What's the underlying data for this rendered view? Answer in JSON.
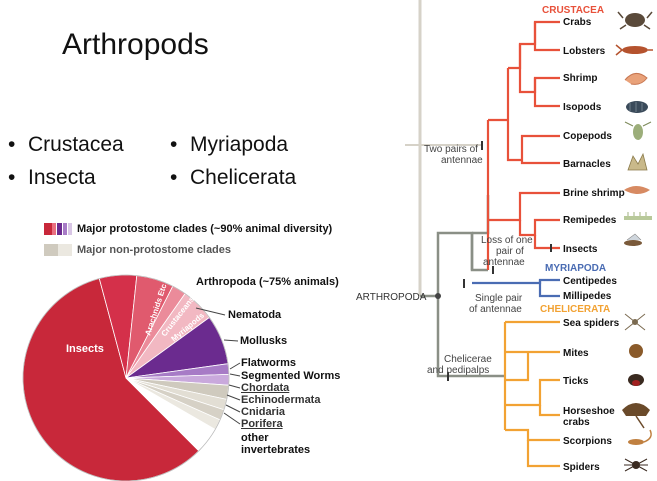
{
  "slide_title": "Arthropods",
  "bullets": [
    "Crustacea",
    "Insecta",
    "Myriapoda",
    "Chelicerata"
  ],
  "legend": {
    "major_protostome": "Major protostome clades (~90% animal diversity)",
    "major_nonprotostome": "Major non-protostome clades"
  },
  "pie": {
    "inner_labels": {
      "insects": "Insects",
      "arachnids": "Arachnids Etc",
      "crustaceans": "Crustaceans",
      "myriapods": "Myriapods"
    },
    "outer_labels": {
      "arthropoda": "Arthropoda (~75% animals)",
      "nematoda": "Nematoda",
      "mollusks": "Mollusks",
      "flatworms": "Flatworms",
      "segmented": "Segmented Worms",
      "chordata": "Chordata",
      "echinodermata": "Echinodermata",
      "cnidaria": "Cnidaria",
      "porifera": "Porifera",
      "other1": "other",
      "other2": "invertebrates"
    }
  },
  "tree": {
    "clades": {
      "crustacea": "CRUSTACEA",
      "myriapoda": "MYRIAPODA",
      "chelicerata": "CHELICERATA",
      "arthropoda": "ARTHROPODA"
    },
    "nodes": {
      "two_pairs_1": "Two pairs of",
      "two_pairs_2": "antennae",
      "loss_1": "Loss of one",
      "loss_2": "pair of",
      "loss_3": "antennae",
      "single_1": "Single pair",
      "single_2": "of antennae",
      "chel_1": "Chelicerae",
      "chel_2": "and pedipalps"
    },
    "taxa": {
      "crabs": "Crabs",
      "lobsters": "Lobsters",
      "shrimp": "Shrimp",
      "isopods": "Isopods",
      "copepods": "Copepods",
      "barnacles": "Barnacles",
      "brine_shrimp": "Brine shrimp",
      "remipedes": "Remipedes",
      "insects": "Insects",
      "centipedes": "Centipedes",
      "millipedes": "Millipedes",
      "sea_spiders": "Sea spiders",
      "mites": "Mites",
      "ticks": "Ticks",
      "horseshoe_1": "Horseshoe",
      "horseshoe_2": "crabs",
      "scorpions": "Scorpions",
      "spiders": "Spiders"
    }
  },
  "colors": {
    "crustacea": "#e8513a",
    "myriapoda": "#4a6cb3",
    "chelicerata": "#f2a233",
    "trunk": "#8a8f86",
    "outgroup": "#d6d2c8",
    "insects_slice": "#c8283a",
    "purple": "#6b2b8f"
  }
}
